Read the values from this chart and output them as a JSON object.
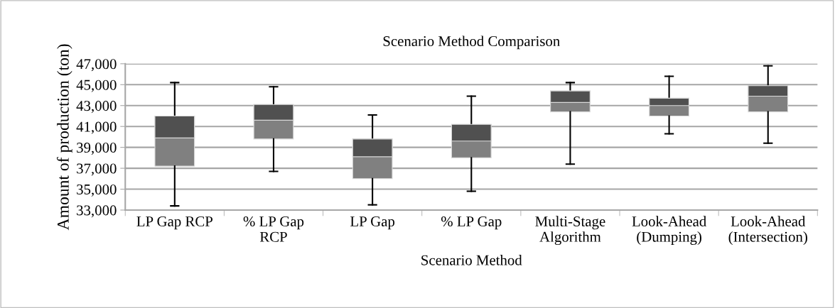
{
  "chart_data": {
    "type": "box",
    "title": "Scenario Method Comparison",
    "xlabel": "Scenario Method",
    "ylabel": "Amount of production (ton)",
    "categories": [
      "LP Gap RCP",
      "% LP Gap\nRCP",
      "LP Gap",
      "% LP Gap",
      "Multi-Stage\nAlgorithm",
      "Look-Ahead\n(Dumping)",
      "Look-Ahead\n(Intersection)"
    ],
    "boxes": [
      {
        "low": 33400,
        "q1": 37200,
        "median": 39900,
        "q3": 42000,
        "high": 45200
      },
      {
        "low": 36700,
        "q1": 39800,
        "median": 41600,
        "q3": 43100,
        "high": 44800
      },
      {
        "low": 33500,
        "q1": 36000,
        "median": 38100,
        "q3": 39800,
        "high": 42100
      },
      {
        "low": 34800,
        "q1": 38000,
        "median": 39600,
        "q3": 41200,
        "high": 43900
      },
      {
        "low": 37400,
        "q1": 42400,
        "median": 43300,
        "q3": 44400,
        "high": 45200
      },
      {
        "low": 40300,
        "q1": 42000,
        "median": 43000,
        "q3": 43700,
        "high": 45800
      },
      {
        "low": 39400,
        "q1": 42400,
        "median": 43900,
        "q3": 44900,
        "high": 46800
      }
    ],
    "color": "#505050",
    "colors": [
      "#808080",
      "#808080",
      "#808080",
      "#808080",
      "#808080",
      "#808080",
      "#808080"
    ],
    "ylim": [
      33000,
      47000
    ],
    "yticks": [
      {
        "value": 33000,
        "label": "33,000"
      },
      {
        "value": 35000,
        "label": "35,000"
      },
      {
        "value": 37000,
        "label": "37,000"
      },
      {
        "value": 39000,
        "label": "39,000"
      },
      {
        "value": 41000,
        "label": "41,000"
      },
      {
        "value": 43000,
        "label": "43,000"
      },
      {
        "value": 45000,
        "label": "45,000"
      },
      {
        "value": 47000,
        "label": "47,000"
      }
    ],
    "grid": "y"
  }
}
